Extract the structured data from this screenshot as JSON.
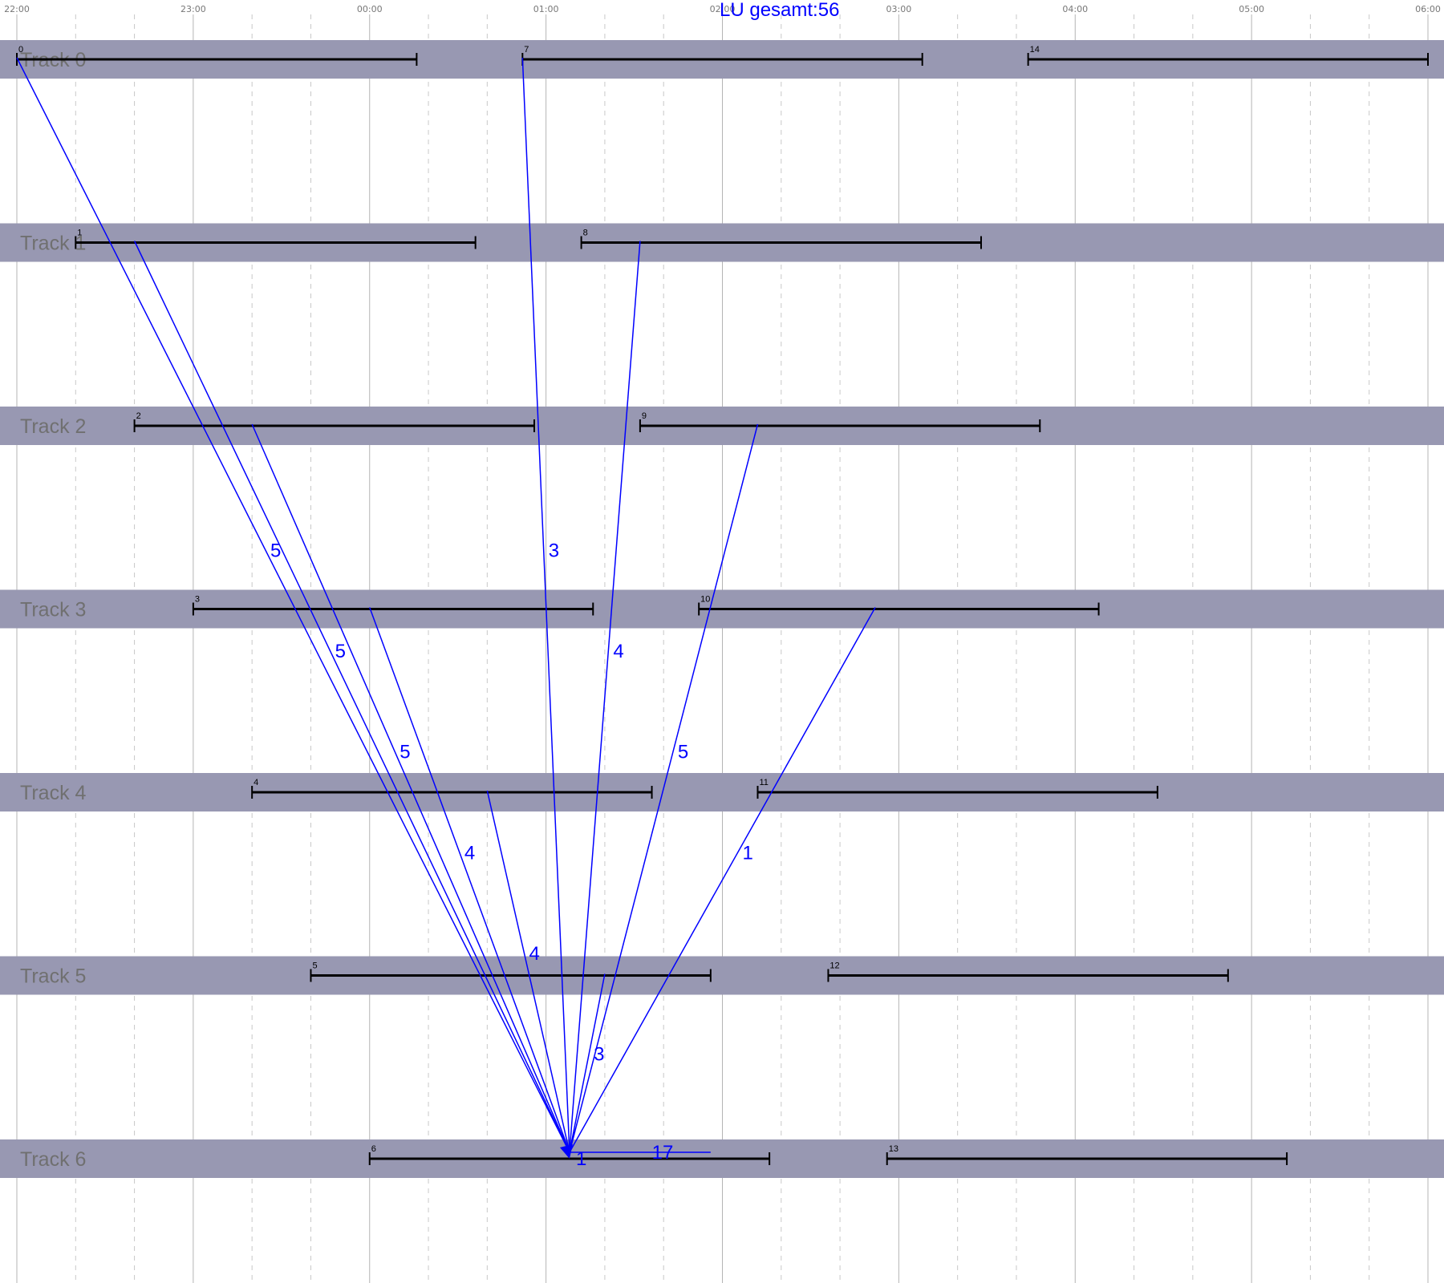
{
  "title": "LU gesamt:56",
  "colors": {
    "background": "#ffffff",
    "track_band": "#9898b2",
    "track_label": "#707070",
    "bar": "#000000",
    "link": "#0000ff",
    "hour_grid": "#b4b4b4",
    "half_grid": "#c8c8c8",
    "time_label": "#777777"
  },
  "time_axis": {
    "start": "22:00",
    "end": "06:00",
    "labels": [
      "22:00",
      "23:00",
      "00:00",
      "01:00",
      "02:00",
      "03:00",
      "04:00",
      "05:00",
      "06:00"
    ],
    "dashed_minor_grid": true
  },
  "tracks": [
    {
      "id": 0,
      "label": "Track 0"
    },
    {
      "id": 1,
      "label": "Track 1"
    },
    {
      "id": 2,
      "label": "Track 2"
    },
    {
      "id": 3,
      "label": "Track 3"
    },
    {
      "id": 4,
      "label": "Track 4"
    },
    {
      "id": 5,
      "label": "Track 5"
    },
    {
      "id": 6,
      "label": "Track 6"
    }
  ],
  "bars": [
    {
      "label": "0",
      "track": 0,
      "start": "22:00",
      "end": "00:16"
    },
    {
      "label": "7",
      "track": 0,
      "start": "00:52",
      "end": "03:08"
    },
    {
      "label": "14",
      "track": 0,
      "start": "03:44",
      "end": "06:00"
    },
    {
      "label": "1",
      "track": 1,
      "start": "22:20",
      "end": "00:36"
    },
    {
      "label": "8",
      "track": 1,
      "start": "01:12",
      "end": "03:28"
    },
    {
      "label": "2",
      "track": 2,
      "start": "22:40",
      "end": "00:56"
    },
    {
      "label": "9",
      "track": 2,
      "start": "01:32",
      "end": "03:48"
    },
    {
      "label": "3",
      "track": 3,
      "start": "23:00",
      "end": "01:16"
    },
    {
      "label": "10",
      "track": 3,
      "start": "01:52",
      "end": "04:08"
    },
    {
      "label": "4",
      "track": 4,
      "start": "23:20",
      "end": "01:36"
    },
    {
      "label": "11",
      "track": 4,
      "start": "02:12",
      "end": "04:28"
    },
    {
      "label": "5",
      "track": 5,
      "start": "23:40",
      "end": "01:56"
    },
    {
      "label": "12",
      "track": 5,
      "start": "02:36",
      "end": "04:52"
    },
    {
      "label": "6",
      "track": 6,
      "start": "00:00",
      "end": "02:16"
    },
    {
      "label": "13",
      "track": 6,
      "start": "02:56",
      "end": "05:12"
    }
  ],
  "links": [
    {
      "from_track": 0,
      "from_time": "22:00",
      "label": "5"
    },
    {
      "from_track": 1,
      "from_time": "22:40",
      "label": "5"
    },
    {
      "from_track": 2,
      "from_time": "23:20",
      "label": "5"
    },
    {
      "from_track": 3,
      "from_time": "00:00",
      "label": "4"
    },
    {
      "from_track": 4,
      "from_time": "00:40",
      "label": "4"
    },
    {
      "from_track": 0,
      "from_time": "00:52",
      "label": "3"
    },
    {
      "from_track": 1,
      "from_time": "01:32",
      "label": "4"
    },
    {
      "from_track": 2,
      "from_time": "02:12",
      "label": "5"
    },
    {
      "from_track": 3,
      "from_time": "02:52",
      "label": "1"
    },
    {
      "from_track": 5,
      "from_time": "01:20",
      "label": "3"
    },
    {
      "from_track": 6,
      "from_time": "01:56",
      "label": "17"
    }
  ],
  "link_target": {
    "track": 6,
    "time": "01:08"
  },
  "self_link_label": "1"
}
